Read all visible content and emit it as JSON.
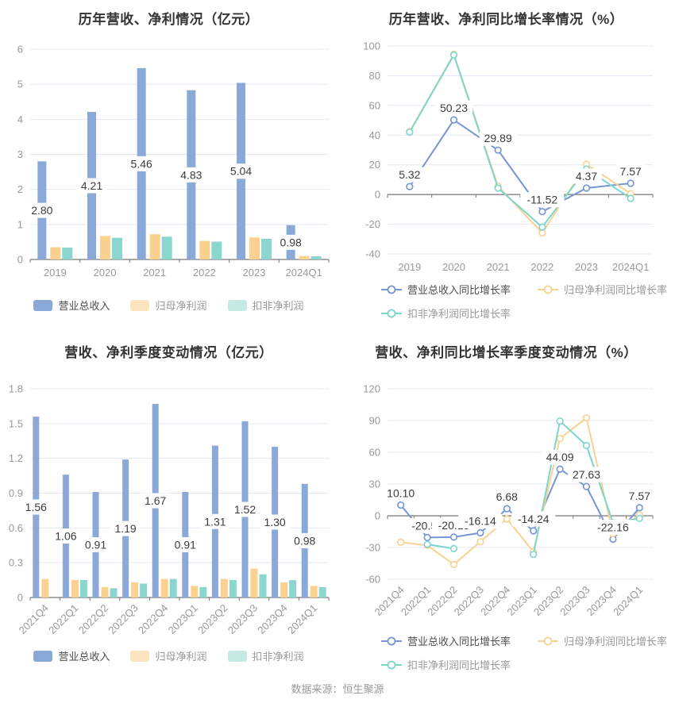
{
  "footer": {
    "source_label": "数据来源：恒生聚源"
  },
  "colors": {
    "background": "#ffffff",
    "title_text": "#333333",
    "axis_text": "#999999",
    "grid_line": "#e4eaf4",
    "axis_line": "#555555",
    "tick_line": "#777777",
    "data_label_text": "#3c3c3c",
    "label_pill": "#ffffff",
    "legend_text_first": "#4d4d4d",
    "legend_text_rest": "#999999"
  },
  "chart_data": [
    {
      "type": "bar",
      "title": "历年营收、净利情况（亿元）",
      "categories": [
        "2019",
        "2020",
        "2021",
        "2022",
        "2023",
        "2024Q1"
      ],
      "series": [
        {
          "name": "营业总收入",
          "color": "#8aa9d8",
          "legend_color": "#8aa9d8",
          "values": [
            2.8,
            4.21,
            5.46,
            4.83,
            5.04,
            0.98
          ],
          "labels": [
            "2.80",
            "4.21",
            "5.46",
            "4.83",
            "5.04",
            "0.98"
          ]
        },
        {
          "name": "归母净利润",
          "color": "#fad18f",
          "legend_color": "#fce4be",
          "values": [
            0.35,
            0.67,
            0.72,
            0.53,
            0.63,
            0.1
          ]
        },
        {
          "name": "扣非净利润",
          "color": "#8bd7d0",
          "legend_color": "#c5e9e3",
          "values": [
            0.34,
            0.62,
            0.65,
            0.51,
            0.59,
            0.09
          ]
        }
      ],
      "ylim": [
        0,
        6
      ],
      "yticks": [
        0,
        1,
        2,
        3,
        4,
        5,
        6
      ],
      "ytick_labels": [
        "0",
        "1",
        "2",
        "3",
        "4",
        "5",
        "6"
      ],
      "grid": true,
      "legend_position": "bottom-center",
      "rotate_x_labels": false
    },
    {
      "type": "line",
      "title": "历年营收、净利同比增长率情况（%）",
      "categories": [
        "2019",
        "2020",
        "2021",
        "2022",
        "2023",
        "2024Q1"
      ],
      "series": [
        {
          "name": "营业总收入同比增长率",
          "color": "#7496d6",
          "legend_color": "#7496d6",
          "values": [
            5.32,
            50.23,
            29.89,
            -11.52,
            4.37,
            7.57
          ],
          "labels": [
            "5.32",
            "50.23",
            "29.89",
            "-11.52",
            "4.37",
            "7.57"
          ]
        },
        {
          "name": "归母净利润同比增长率",
          "color": "#fad191",
          "legend_color": "#fad191",
          "values": [
            42.4,
            94.4,
            5.6,
            -25.9,
            20.4,
            0.6
          ]
        },
        {
          "name": "扣非净利润同比增长率",
          "color": "#7cd6ce",
          "legend_color": "#7cd6ce",
          "values": [
            42.0,
            94.0,
            4.3,
            -21.9,
            17.2,
            -2.6
          ]
        }
      ],
      "ylim": [
        -40,
        100
      ],
      "yticks": [
        -40,
        -20,
        0,
        20,
        40,
        60,
        80,
        100
      ],
      "ytick_labels": [
        "-40",
        "-20",
        "0",
        "20",
        "40",
        "60",
        "80",
        "100"
      ],
      "grid": true,
      "legend_position": "bottom-left-wrap",
      "rotate_x_labels": false
    },
    {
      "type": "bar",
      "title": "营收、净利季度变动情况（亿元）",
      "categories": [
        "2021Q4",
        "2022Q1",
        "2022Q2",
        "2022Q3",
        "2022Q4",
        "2023Q1",
        "2023Q2",
        "2023Q3",
        "2023Q4",
        "2024Q1"
      ],
      "series": [
        {
          "name": "营业总收入",
          "color": "#8aa9d8",
          "legend_color": "#8aa9d8",
          "values": [
            1.56,
            1.06,
            0.91,
            1.19,
            1.67,
            0.91,
            1.31,
            1.52,
            1.3,
            0.98
          ],
          "labels": [
            "1.56",
            "1.06",
            "0.91",
            "1.19",
            "1.67",
            "0.91",
            "1.31",
            "1.52",
            "1.30",
            "0.98"
          ]
        },
        {
          "name": "归母净利润",
          "color": "#fad18f",
          "legend_color": "#fce4be",
          "values": [
            0.16,
            0.15,
            0.09,
            0.13,
            0.16,
            0.1,
            0.16,
            0.25,
            0.13,
            0.1
          ]
        },
        {
          "name": "扣非净利润",
          "color": "#8bd7d0",
          "legend_color": "#c5e9e3",
          "values": [
            null,
            0.15,
            0.08,
            0.12,
            0.16,
            0.09,
            0.15,
            0.2,
            0.15,
            0.09
          ]
        }
      ],
      "ylim": [
        0,
        1.8
      ],
      "yticks": [
        0,
        0.3,
        0.6,
        0.9,
        1.2,
        1.5,
        1.8
      ],
      "ytick_labels": [
        "0",
        "0.3",
        "0.6",
        "0.9",
        "1.2",
        "1.5",
        "1.8"
      ],
      "grid": true,
      "legend_position": "bottom-center",
      "rotate_x_labels": true
    },
    {
      "type": "line",
      "title": "营收、净利同比增长率季度变动情况（%）",
      "categories": [
        "2021Q4",
        "2022Q1",
        "2022Q2",
        "2022Q3",
        "2022Q4",
        "2023Q1",
        "2023Q2",
        "2023Q3",
        "2023Q4",
        "2024Q1"
      ],
      "series": [
        {
          "name": "营业总收入同比增长率",
          "color": "#7496d6",
          "legend_color": "#7496d6",
          "values": [
            10.1,
            -20.55,
            -20.13,
            -16.14,
            6.68,
            -14.24,
            44.09,
            27.63,
            -22.16,
            7.57
          ],
          "labels": [
            "10.10",
            "-20.55",
            "-20.13",
            "-16.14",
            "6.68",
            "-14.24",
            "44.09",
            "27.63",
            "-22.16",
            "7.57"
          ]
        },
        {
          "name": "归母净利润同比增长率",
          "color": "#fad191",
          "legend_color": "#fad191",
          "values": [
            -25.0,
            -28.0,
            -46.0,
            -24.5,
            -3.0,
            -34.0,
            73.0,
            92.5,
            -17.0,
            1.0
          ]
        },
        {
          "name": "扣非净利润同比增长率",
          "color": "#7cd6ce",
          "legend_color": "#7cd6ce",
          "values": [
            null,
            -27.0,
            -31.0,
            null,
            null,
            -36.5,
            89.5,
            66.5,
            -6.5,
            -2.5
          ]
        }
      ],
      "ylim": [
        -60,
        120
      ],
      "yticks": [
        -60,
        -30,
        0,
        30,
        60,
        90,
        120
      ],
      "ytick_labels": [
        "-60",
        "-30",
        "0",
        "30",
        "60",
        "90",
        "120"
      ],
      "grid": true,
      "legend_position": "bottom-left-wrap",
      "rotate_x_labels": true
    }
  ]
}
